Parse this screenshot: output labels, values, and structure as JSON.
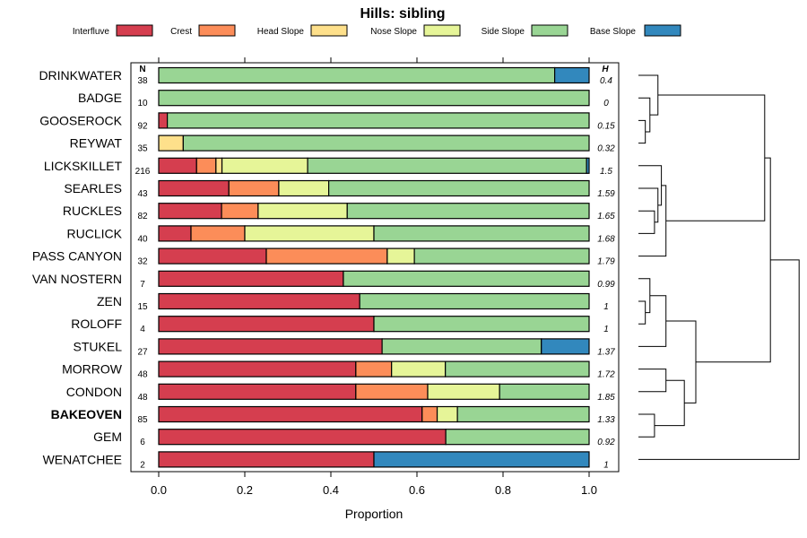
{
  "chart_data": {
    "type": "bar",
    "orientation": "horizontal",
    "stacked": true,
    "title": "Hills: sibling",
    "xlabel": "Proportion",
    "xlim": [
      0,
      1
    ],
    "xticks": [
      "0.0",
      "0.2",
      "0.4",
      "0.6",
      "0.8",
      "1.0"
    ],
    "n_header": "N",
    "h_header": "H",
    "legend_position": "top",
    "legend": [
      {
        "name": "Interfluve",
        "color": "#d53e4f"
      },
      {
        "name": "Crest",
        "color": "#fc8d59"
      },
      {
        "name": "Head Slope",
        "color": "#fee08b"
      },
      {
        "name": "Nose Slope",
        "color": "#e6f598"
      },
      {
        "name": "Side Slope",
        "color": "#99d594"
      },
      {
        "name": "Base Slope",
        "color": "#3288bd"
      }
    ],
    "rows": [
      {
        "label": "DRINKWATER",
        "n": "38",
        "h": "0.4",
        "bold": false,
        "values": [
          0,
          0,
          0,
          0,
          0.92,
          0.08
        ]
      },
      {
        "label": "BADGE",
        "n": "10",
        "h": "0",
        "bold": false,
        "values": [
          0,
          0,
          0,
          0,
          1.0,
          0
        ]
      },
      {
        "label": "GOOSEROCK",
        "n": "92",
        "h": "0.15",
        "bold": false,
        "values": [
          0.02,
          0,
          0,
          0,
          0.98,
          0
        ]
      },
      {
        "label": "REYWAT",
        "n": "35",
        "h": "0.32",
        "bold": false,
        "values": [
          0,
          0,
          0.057,
          0,
          0.943,
          0
        ]
      },
      {
        "label": "LICKSKILLET",
        "n": "216",
        "h": "1.5",
        "bold": false,
        "values": [
          0.088,
          0.045,
          0.014,
          0.199,
          0.648,
          0.006
        ]
      },
      {
        "label": "SEARLES",
        "n": "43",
        "h": "1.59",
        "bold": false,
        "values": [
          0.163,
          0.116,
          0,
          0.116,
          0.605,
          0
        ]
      },
      {
        "label": "RUCKLES",
        "n": "82",
        "h": "1.65",
        "bold": false,
        "values": [
          0.146,
          0.085,
          0,
          0.207,
          0.562,
          0
        ]
      },
      {
        "label": "RUCLICK",
        "n": "40",
        "h": "1.68",
        "bold": false,
        "values": [
          0.075,
          0.125,
          0,
          0.3,
          0.5,
          0
        ]
      },
      {
        "label": "PASS CANYON",
        "n": "32",
        "h": "1.79",
        "bold": false,
        "values": [
          0.25,
          0.281,
          0,
          0.063,
          0.406,
          0
        ]
      },
      {
        "label": "VAN NOSTERN",
        "n": "7",
        "h": "0.99",
        "bold": false,
        "values": [
          0.429,
          0,
          0,
          0,
          0.571,
          0
        ]
      },
      {
        "label": "ZEN",
        "n": "15",
        "h": "1",
        "bold": false,
        "values": [
          0.467,
          0,
          0,
          0,
          0.533,
          0
        ]
      },
      {
        "label": "ROLOFF",
        "n": "4",
        "h": "1",
        "bold": false,
        "values": [
          0.5,
          0,
          0,
          0,
          0.5,
          0
        ]
      },
      {
        "label": "STUKEL",
        "n": "27",
        "h": "1.37",
        "bold": false,
        "values": [
          0.519,
          0,
          0,
          0,
          0.37,
          0.111
        ]
      },
      {
        "label": "MORROW",
        "n": "48",
        "h": "1.72",
        "bold": false,
        "values": [
          0.458,
          0.083,
          0,
          0.125,
          0.334,
          0
        ]
      },
      {
        "label": "CONDON",
        "n": "48",
        "h": "1.85",
        "bold": false,
        "values": [
          0.458,
          0.167,
          0,
          0.167,
          0.208,
          0
        ]
      },
      {
        "label": "BAKEOVEN",
        "n": "85",
        "h": "1.33",
        "bold": true,
        "values": [
          0.612,
          0.035,
          0,
          0.047,
          0.306,
          0
        ]
      },
      {
        "label": "GEM",
        "n": "6",
        "h": "0.92",
        "bold": false,
        "values": [
          0.667,
          0,
          0,
          0,
          0.333,
          0
        ]
      },
      {
        "label": "WENATCHEE",
        "n": "2",
        "h": "1",
        "bold": false,
        "values": [
          0.5,
          0,
          0,
          0,
          0,
          0.5
        ]
      }
    ],
    "dendrogram": {
      "description": "hierarchical clustering of rows",
      "merges": [
        {
          "left": "GOOSEROCK",
          "right": "REYWAT",
          "height": 0.06
        },
        {
          "left": "BADGE",
          "right": "m0",
          "height": 0.1
        },
        {
          "left": "DRINKWATER",
          "right": "m1",
          "height": 0.17
        },
        {
          "left": "RUCKLES",
          "right": "RUCLICK",
          "height": 0.14
        },
        {
          "left": "SEARLES",
          "right": "m3",
          "height": 0.17
        },
        {
          "left": "LICKSKILLET",
          "right": "m4",
          "height": 0.2
        },
        {
          "left": "m5",
          "right": "PASS CANYON",
          "height": 0.24
        },
        {
          "left": "ZEN",
          "right": "ROLOFF",
          "height": 0.06
        },
        {
          "left": "VAN NOSTERN",
          "right": "m7",
          "height": 0.1
        },
        {
          "left": "m8",
          "right": "STUKEL",
          "height": 0.24
        },
        {
          "left": "MORROW",
          "right": "CONDON",
          "height": 0.24
        },
        {
          "left": "BAKEOVEN",
          "right": "GEM",
          "height": 0.14
        },
        {
          "left": "m10",
          "right": "m11",
          "height": 0.4
        },
        {
          "left": "m9",
          "right": "m12",
          "height": 0.5
        },
        {
          "left": "m2",
          "right": "m6",
          "height": 1.1
        },
        {
          "left": "m14",
          "right": "m13",
          "height": 1.15
        },
        {
          "left": "m15",
          "right": "WENATCHEE",
          "height": 1.4
        }
      ]
    }
  }
}
